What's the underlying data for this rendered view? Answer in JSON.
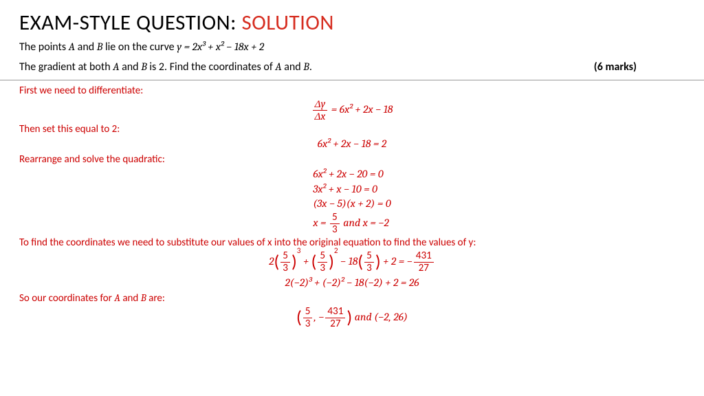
{
  "title": {
    "black": "EXAM-STYLE QUESTION: ",
    "red": "SOLUTION"
  },
  "question": {
    "line1_pre": "The points ",
    "A": "A",
    "and1": " and ",
    "B": "B",
    "line1_mid": " lie on the curve ",
    "curve": "y = 2x³ + x² − 18x + 2",
    "line2_pre": "The gradient at both ",
    "line2_mid": " is 2. Find the coordinates of ",
    "line2_end": ".",
    "marks": "(6 marks)"
  },
  "steps": {
    "s1": "First we need to differentiate:",
    "s2": "Then set this equal to 2:",
    "s3": "Rearrange and solve the quadratic:",
    "s4": "To find the coordinates we need to substitute our values of x into the original equation to find the values of y:",
    "s5_pre": "So our coordinates for ",
    "s5_mid": " and ",
    "s5_end": " are:"
  },
  "eq": {
    "dy": "Δy",
    "dx": "Δx",
    "deriv_rhs": " = 6x² + 2x − 18",
    "set2": "6x² + 2x − 18 = 2",
    "q1": "6x² + 2x − 20 = 0",
    "q2": "3x² + x − 10 = 0",
    "q3": "(3x − 5)(x + 2) = 0",
    "xsol_pre": "x = ",
    "five": "5",
    "three": "3",
    "xsol_and": " and x = −2",
    "sub1_a": "2",
    "sub1_b": " + ",
    "sub1_c": " − 18",
    "sub1_d": " + 2 = −",
    "n431": "431",
    "n27": "27",
    "sub2": "2(−2)³ + (−2)² − 18(−2) + 2 = 26",
    "coord_and": " and (−2, 26)",
    "comma_neg": ", −"
  },
  "colors": {
    "red": "#cc0000",
    "title_red": "#d62d20",
    "black": "#000000",
    "rule": "#999999",
    "bg": "#ffffff"
  },
  "fontsize": {
    "title": 31,
    "body": 16,
    "solution": 15
  }
}
